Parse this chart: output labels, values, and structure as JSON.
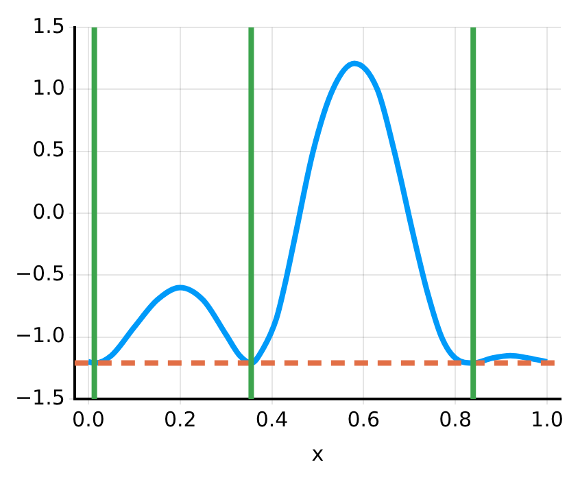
{
  "chart_data": {
    "type": "line",
    "xlabel": "x",
    "xlim": [
      -0.03,
      1.03
    ],
    "xticks": [
      {
        "value": 0,
        "label": "0.0"
      },
      0.2,
      0.4,
      0.6,
      0.8,
      {
        "value": 1,
        "label": "1.0"
      }
    ],
    "ylim": [
      -1.5,
      1.5
    ],
    "yticks": [
      {
        "value": -1.5,
        "label": "−1.5"
      },
      {
        "value": -1,
        "label": "−1.0"
      },
      {
        "value": -0.5,
        "label": "−0.5"
      },
      {
        "value": 0,
        "label": "0.0"
      },
      0.5,
      {
        "value": 1,
        "label": "1.0"
      },
      1.5
    ],
    "grid": true,
    "legend": false,
    "marker": "none",
    "series": [
      {
        "color": "#009af9",
        "x": [
          0,
          0.015,
          0.05,
          0.1,
          0.15,
          0.2,
          0.25,
          0.3,
          0.33,
          0.355,
          0.38,
          0.41,
          0.43,
          0.45,
          0.49,
          0.533,
          0.58,
          0.63,
          0.667,
          0.71,
          0.74,
          0.77,
          0.8,
          0.839,
          0.88,
          0.92,
          0.96,
          1.0
        ],
        "values": [
          -1.2,
          -1.21,
          -1.15,
          -0.92,
          -0.7,
          -0.6,
          -0.7,
          -0.98,
          -1.15,
          -1.21,
          -1.1,
          -0.85,
          -0.55,
          -0.2,
          0.5,
          1.0,
          1.21,
          1.0,
          0.5,
          -0.2,
          -0.65,
          -1.0,
          -1.17,
          -1.21,
          -1.17,
          -1.15,
          -1.17,
          -1.2
        ]
      }
    ],
    "ref_lines": [
      {
        "axis": "y",
        "value": -1.21,
        "color": "#e26f46",
        "line_style": "dashed"
      },
      {
        "axis": "x",
        "value": 0.013,
        "color": "#3da44d",
        "line_style": "solid"
      },
      {
        "axis": "x",
        "value": 0.355,
        "color": "#3da44d",
        "line_style": "solid"
      },
      {
        "axis": "x",
        "value": 0.839,
        "color": "#3da44d",
        "line_style": "solid"
      }
    ]
  }
}
